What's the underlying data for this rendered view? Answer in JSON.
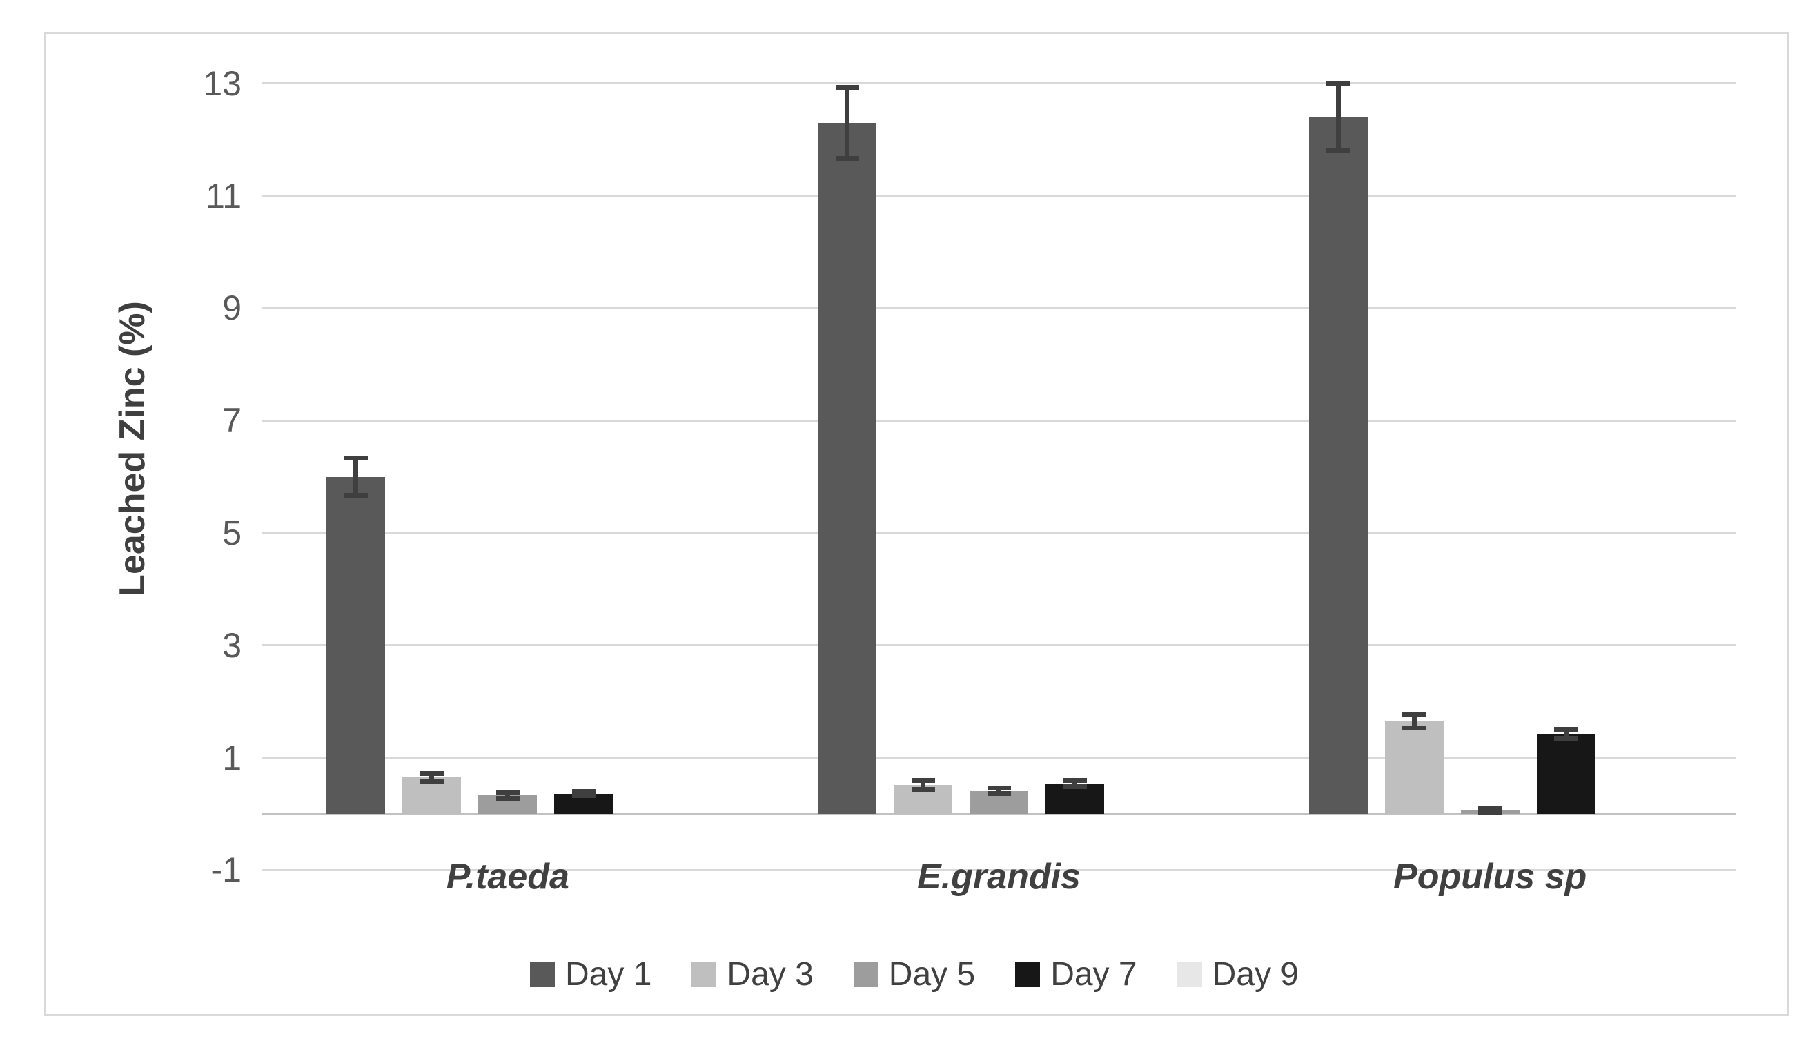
{
  "chart_data": {
    "type": "bar",
    "title": "",
    "xlabel": "",
    "ylabel": "Leached Zinc (%)",
    "categories": [
      "P.taeda",
      "E.grandis",
      "Populus sp"
    ],
    "yticks": [
      13,
      11,
      9,
      7,
      5,
      3,
      1,
      -1
    ],
    "ylim": [
      -1,
      13
    ],
    "baseline_value": 0,
    "grid": true,
    "legend_position": "bottom",
    "series": [
      {
        "name": "Day 1",
        "color": "#595959",
        "values": [
          6.0,
          12.3,
          12.4
        ],
        "errors": [
          0.33,
          0.63,
          0.6
        ]
      },
      {
        "name": "Day 3",
        "color": "#bfbfbf",
        "values": [
          0.65,
          0.52,
          1.65
        ],
        "errors": [
          0.07,
          0.08,
          0.12
        ]
      },
      {
        "name": "Day 5",
        "color": "#9d9d9d",
        "values": [
          0.33,
          0.41,
          0.06
        ],
        "errors": [
          0.05,
          0.05,
          0.04
        ]
      },
      {
        "name": "Day 7",
        "color": "#171717",
        "values": [
          0.36,
          0.54,
          1.42
        ],
        "errors": [
          0.04,
          0.06,
          0.08
        ]
      },
      {
        "name": "Day 9",
        "color": "#e7e7e7",
        "values": [
          0,
          0,
          0
        ],
        "errors": [
          0,
          0,
          0
        ]
      }
    ],
    "error_bar_color": "#3f3f3f",
    "gridline_color": "#d9d9d9",
    "axis_line_color": "#c2c2c2",
    "tick_label_color": "#595959",
    "text_color": "#404040"
  }
}
